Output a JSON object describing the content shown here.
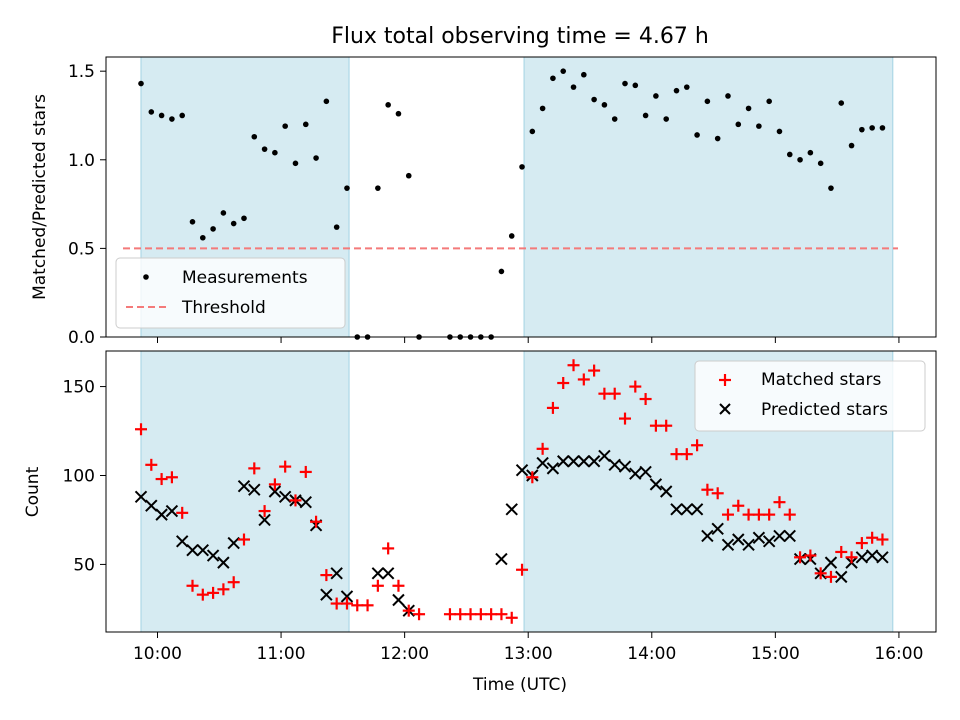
{
  "chart_data": [
    {
      "type": "scatter",
      "title": "Flux total observing time = 4.67 h",
      "xlabel": "",
      "ylabel": "Matched/Predicted stars",
      "xlim": [
        "09:35",
        "16:18"
      ],
      "ylim": [
        0,
        1.58
      ],
      "yticks": [
        "0.0",
        "0.5",
        "1.0",
        "1.5"
      ],
      "legend": {
        "position": "lower-left"
      },
      "observing_windows": [
        [
          "09:52",
          "11:33"
        ],
        [
          "12:58",
          "15:57"
        ]
      ],
      "threshold": {
        "name": "Threshold",
        "value": 0.5,
        "color": "#f47a7a",
        "style": "dashed"
      },
      "series": [
        {
          "name": "Measurements",
          "color": "#000000",
          "marker": "dot",
          "x": [
            "09:52",
            "09:57",
            "10:02",
            "10:07",
            "10:12",
            "10:17",
            "10:22",
            "10:27",
            "10:32",
            "10:37",
            "10:42",
            "10:47",
            "10:52",
            "10:57",
            "11:02",
            "11:07",
            "11:12",
            "11:17",
            "11:22",
            "11:27",
            "11:32",
            "11:37",
            "11:42",
            "11:47",
            "11:52",
            "11:57",
            "12:02",
            "12:07",
            "12:12",
            "12:17",
            "12:22",
            "12:27",
            "12:32",
            "12:37",
            "12:42",
            "12:47",
            "12:52",
            "12:57",
            "13:02",
            "13:07",
            "13:12",
            "13:17",
            "13:22",
            "13:27",
            "13:32",
            "13:37",
            "13:42",
            "13:47",
            "13:52",
            "13:57",
            "14:02",
            "14:07",
            "14:12",
            "14:17",
            "14:22",
            "14:27",
            "14:32",
            "14:37",
            "14:42",
            "14:47",
            "14:52",
            "14:57",
            "15:02",
            "15:07",
            "15:12",
            "15:17",
            "15:22",
            "15:27",
            "15:32",
            "15:37",
            "15:42",
            "15:47",
            "15:52",
            "15:57"
          ],
          "y": [
            1.43,
            1.27,
            1.25,
            1.23,
            1.25,
            0.65,
            0.56,
            0.61,
            0.7,
            0.64,
            0.67,
            1.13,
            1.06,
            1.04,
            1.19,
            0.98,
            1.2,
            1.01,
            1.33,
            0.62,
            0.84,
            0.0,
            0.0,
            0.84,
            1.31,
            1.26,
            0.91,
            0.0,
            null,
            null,
            0.0,
            0.0,
            0.0,
            0.0,
            0.0,
            0.37,
            0.57,
            0.96,
            1.16,
            1.29,
            1.46,
            1.5,
            1.41,
            1.48,
            1.34,
            1.31,
            1.23,
            1.43,
            1.42,
            1.25,
            1.36,
            1.23,
            1.39,
            1.41,
            1.14,
            1.33,
            1.12,
            1.36,
            1.2,
            1.29,
            1.19,
            1.33,
            1.16,
            1.03,
            1.0,
            1.04,
            0.98,
            0.84,
            1.32,
            1.08,
            1.17,
            1.18,
            1.18,
            null
          ]
        }
      ]
    },
    {
      "type": "scatter",
      "title": "",
      "xlabel": "Time (UTC)",
      "ylabel": "Count",
      "xlim": [
        "09:35",
        "16:18"
      ],
      "ylim": [
        12,
        170
      ],
      "yticks": [
        "50",
        "100",
        "150"
      ],
      "xticks": [
        "10:00",
        "11:00",
        "12:00",
        "13:00",
        "14:00",
        "15:00",
        "16:00"
      ],
      "legend": {
        "position": "top-right"
      },
      "observing_windows": [
        [
          "09:52",
          "11:33"
        ],
        [
          "12:58",
          "15:57"
        ]
      ],
      "series": [
        {
          "name": "Matched stars",
          "color": "#ff0000",
          "marker": "plus",
          "x": [
            "09:52",
            "09:57",
            "10:02",
            "10:07",
            "10:12",
            "10:17",
            "10:22",
            "10:27",
            "10:32",
            "10:37",
            "10:42",
            "10:47",
            "10:52",
            "10:57",
            "11:02",
            "11:07",
            "11:12",
            "11:17",
            "11:22",
            "11:27",
            "11:32",
            "11:37",
            "11:42",
            "11:47",
            "11:52",
            "11:57",
            "12:02",
            "12:07",
            "12:12",
            "12:17",
            "12:22",
            "12:27",
            "12:32",
            "12:37",
            "12:42",
            "12:47",
            "12:52",
            "12:57",
            "13:02",
            "13:07",
            "13:12",
            "13:17",
            "13:22",
            "13:27",
            "13:32",
            "13:37",
            "13:42",
            "13:47",
            "13:52",
            "13:57",
            "14:02",
            "14:07",
            "14:12",
            "14:17",
            "14:22",
            "14:27",
            "14:32",
            "14:37",
            "14:42",
            "14:47",
            "14:52",
            "14:57",
            "15:02",
            "15:07",
            "15:12",
            "15:17",
            "15:22",
            "15:27",
            "15:32",
            "15:37",
            "15:42",
            "15:47",
            "15:52",
            "15:57"
          ],
          "y": [
            126,
            106,
            98,
            99,
            79,
            38,
            33,
            34,
            36,
            40,
            64,
            104,
            80,
            95,
            105,
            86,
            102,
            74,
            44,
            28,
            28,
            27,
            27,
            38,
            59,
            38,
            24,
            22,
            null,
            null,
            22,
            22,
            22,
            22,
            22,
            22,
            20,
            47,
            99,
            115,
            138,
            152,
            162,
            154,
            159,
            146,
            146,
            132,
            150,
            143,
            128,
            128,
            112,
            112,
            117,
            92,
            90,
            78,
            83,
            78,
            78,
            78,
            85,
            78,
            54,
            55,
            45,
            43,
            57,
            54,
            62,
            65,
            64,
            null
          ]
        },
        {
          "name": "Predicted stars",
          "color": "#000000",
          "marker": "x",
          "x": [
            "09:52",
            "09:57",
            "10:02",
            "10:07",
            "10:12",
            "10:17",
            "10:22",
            "10:27",
            "10:32",
            "10:37",
            "10:42",
            "10:47",
            "10:52",
            "10:57",
            "11:02",
            "11:07",
            "11:12",
            "11:17",
            "11:22",
            "11:27",
            "11:32",
            "11:37",
            "11:42",
            "11:47",
            "11:52",
            "11:57",
            "12:02",
            "12:07",
            "12:12",
            "12:17",
            "12:22",
            "12:27",
            "12:32",
            "12:37",
            "12:42",
            "12:47",
            "12:52",
            "12:57",
            "13:02",
            "13:07",
            "13:12",
            "13:17",
            "13:22",
            "13:27",
            "13:32",
            "13:37",
            "13:42",
            "13:47",
            "13:52",
            "13:57",
            "14:02",
            "14:07",
            "14:12",
            "14:17",
            "14:22",
            "14:27",
            "14:32",
            "14:37",
            "14:42",
            "14:47",
            "14:52",
            "14:57",
            "15:02",
            "15:07",
            "15:12",
            "15:17",
            "15:22",
            "15:27",
            "15:32",
            "15:37",
            "15:42",
            "15:47",
            "15:52",
            "15:57"
          ],
          "y": [
            88,
            83,
            78,
            80,
            63,
            58,
            58,
            55,
            51,
            62,
            94,
            92,
            75,
            91,
            88,
            86,
            85,
            72,
            33,
            45,
            32,
            null,
            null,
            45,
            45,
            30,
            24,
            null,
            null,
            null,
            null,
            null,
            null,
            null,
            null,
            53,
            81,
            103,
            100,
            107,
            104,
            108,
            108,
            108,
            108,
            111,
            106,
            105,
            101,
            102,
            95,
            91,
            81,
            81,
            81,
            66,
            70,
            61,
            64,
            61,
            65,
            63,
            66,
            66,
            53,
            53,
            45,
            51,
            43,
            51,
            54,
            55,
            54,
            null
          ]
        }
      ]
    }
  ]
}
